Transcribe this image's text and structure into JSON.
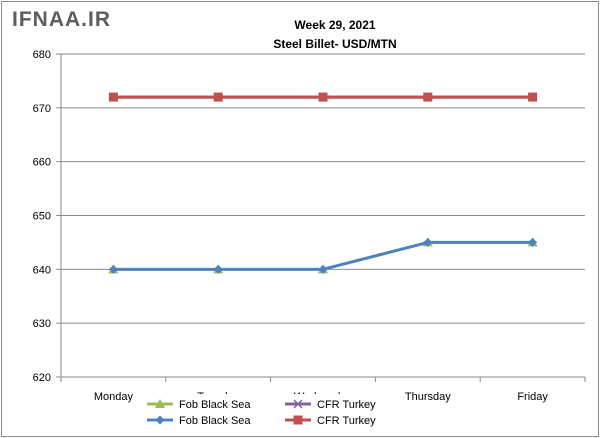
{
  "watermark": "IFNAA.IR",
  "chart_data": {
    "type": "line",
    "title": "Week 29, 2021",
    "subtitle": "Steel Billet- USD/MTN",
    "xlabel": "",
    "ylabel": "",
    "categories": [
      "Monday",
      "Tuesday",
      "Wednesday",
      "Thursday",
      "Friday"
    ],
    "ylim": [
      620,
      680
    ],
    "yticks": [
      620,
      630,
      640,
      650,
      660,
      670,
      680
    ],
    "grid": true,
    "legend_position": "bottom",
    "series": [
      {
        "name": "Fob Black Sea",
        "marker": "triangle",
        "color": "#9bbb59",
        "values": [
          640,
          640,
          640,
          645,
          645
        ],
        "line": false
      },
      {
        "name": "Fob Black Sea",
        "marker": "diamond",
        "color": "#4f81bd",
        "values": [
          640,
          640,
          640,
          645,
          645
        ],
        "line": true
      },
      {
        "name": "CFR Turkey",
        "marker": "x",
        "color": "#8064a2",
        "values": [
          672,
          672,
          672,
          672,
          672
        ],
        "line": true
      },
      {
        "name": "CFR Turkey",
        "marker": "square",
        "color": "#c0504d",
        "values": [
          672,
          672,
          672,
          672,
          672
        ],
        "line": true
      }
    ],
    "legend_order": [
      0,
      2,
      1,
      3
    ]
  }
}
